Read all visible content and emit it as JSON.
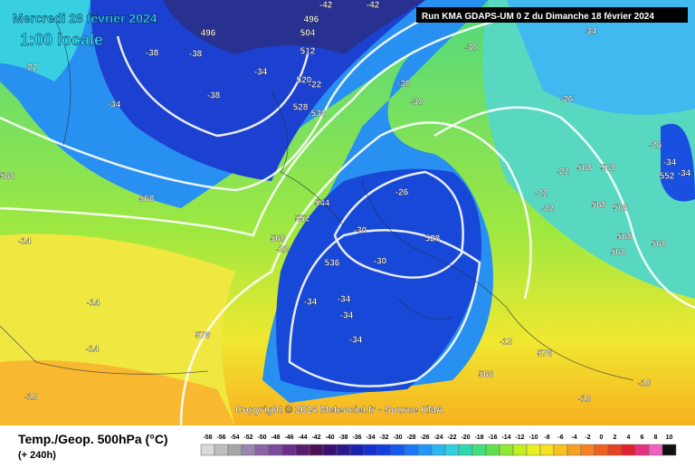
{
  "header": {
    "date": "Mercredi 28 février 2024",
    "time": "1:00 locale",
    "run": "Run KMA GDAPS-UM 0 Z du Dimanche 18 février 2024"
  },
  "copyright": "Copyright © 2024 Meteociel.fr - Source KMA",
  "footer": {
    "title": "Temp./Geop. 500hPa (°C)",
    "lead": "(+ 240h)"
  },
  "map_labels": [
    -42,
    -42,
    496,
    504,
    496,
    -38,
    512,
    -38,
    -34,
    -38,
    -34,
    520,
    -22,
    528,
    536,
    -30,
    -30,
    -30,
    -34,
    -26,
    -22,
    568,
    568,
    552,
    544,
    560,
    -22,
    -26,
    -30,
    528,
    -30,
    536,
    -34,
    -34,
    -34,
    -34,
    -14,
    -14,
    -14,
    576,
    -10,
    -22,
    568,
    568,
    -22,
    -22,
    568,
    568,
    568,
    568,
    568,
    -26,
    -34,
    552,
    -34,
    -12,
    576,
    568,
    -10,
    -10
  ],
  "legend": {
    "labels": [
      -58,
      -56,
      -54,
      -52,
      -50,
      -48,
      -46,
      -44,
      -42,
      -40,
      -38,
      -36,
      -34,
      -32,
      -30,
      -28,
      -26,
      -24,
      -22,
      -20,
      -18,
      -16,
      -14,
      -12,
      -10,
      -8,
      -6,
      -4,
      -2,
      0,
      2,
      4,
      6,
      8,
      10
    ],
    "colors": [
      "#d9d9d9",
      "#bfbfbf",
      "#a6a6a6",
      "#9a86b0",
      "#8a64a8",
      "#7a4a9c",
      "#6a2e8c",
      "#5a1c70",
      "#4a1058",
      "#3b0f70",
      "#2b1890",
      "#1c20b0",
      "#1530d0",
      "#1040e0",
      "#1458f0",
      "#1a78f8",
      "#2098f8",
      "#28b8f0",
      "#30d0e0",
      "#30d8b0",
      "#40e080",
      "#60e050",
      "#90e830",
      "#c0f020",
      "#e8f020",
      "#f8e020",
      "#f8c020",
      "#f8a020",
      "#f88020",
      "#f06020",
      "#e84020",
      "#e02030",
      "#e83080",
      "#f060c0",
      "#101010"
    ]
  }
}
